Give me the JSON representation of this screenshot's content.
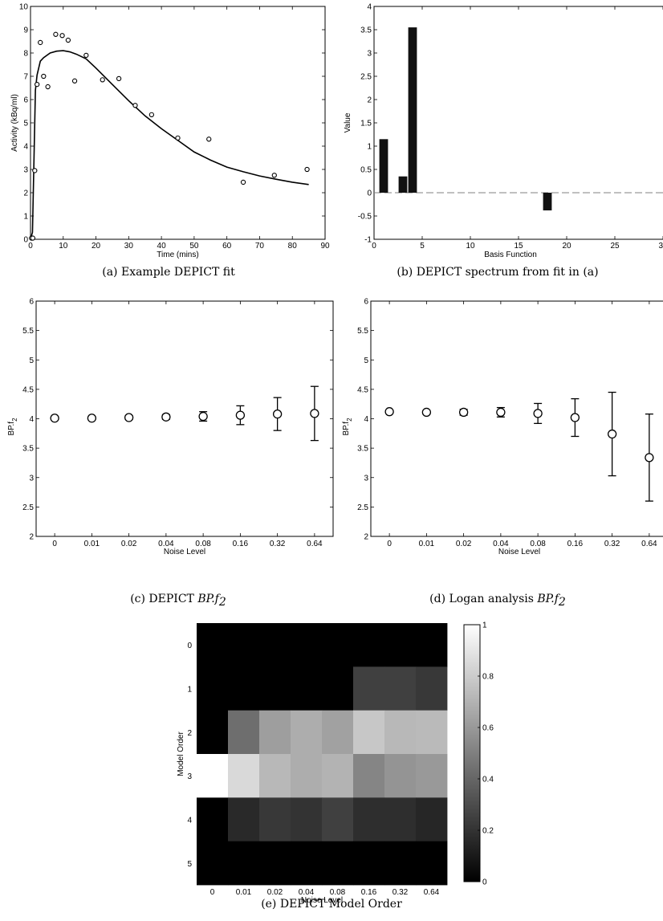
{
  "captions": {
    "a": "(a)  Example DEPICT fit",
    "b": "(b)  DEPICT spectrum from fit in (a)",
    "c_prefix": "(c)  DEPICT ",
    "c_math": "BP.f",
    "c_sub": "2",
    "d_prefix": "(d)  Logan analysis ",
    "d_math": "BP.f",
    "d_sub": "2",
    "e": "(e)  DEPICT Model Order"
  },
  "colors": {
    "ink": "#000000",
    "bar": "#111111",
    "dash": "#808080"
  },
  "chart_data": [
    {
      "id": "a",
      "type": "scatter",
      "xlabel": "Time (mins)",
      "ylabel": "Activity (kBq/ml)",
      "xlim": [
        0,
        90
      ],
      "ylim": [
        0,
        10
      ],
      "xticks": [
        0,
        10,
        20,
        30,
        40,
        50,
        60,
        70,
        80,
        90
      ],
      "yticks": [
        0,
        1,
        2,
        3,
        4,
        5,
        6,
        7,
        8,
        9,
        10
      ],
      "series": [
        {
          "kind": "points",
          "x": [
            0.3,
            0.7,
            1.3,
            2,
            3,
            4,
            5.3,
            7.7,
            9.7,
            11.5,
            13.5,
            17,
            22,
            27,
            32,
            37,
            45,
            54.5,
            65,
            74.5,
            84.5
          ],
          "y": [
            0.05,
            0.05,
            2.95,
            6.65,
            8.45,
            7.0,
            6.55,
            8.8,
            8.75,
            8.55,
            6.8,
            7.9,
            6.85,
            6.9,
            5.75,
            5.35,
            4.35,
            4.3,
            2.45,
            2.75,
            3.0
          ]
        },
        {
          "kind": "line",
          "x": [
            0,
            0.6,
            1.0,
            1.5,
            2.0,
            3.0,
            4.0,
            6.0,
            8.0,
            10.0,
            12.0,
            14.0,
            17.0,
            20.0,
            25.0,
            30.0,
            35.0,
            40.0,
            45.0,
            50.0,
            55.0,
            60.0,
            65.0,
            70.0,
            75.0,
            80.0,
            85.0
          ],
          "y": [
            0,
            0.3,
            3.0,
            6.4,
            7.05,
            7.65,
            7.8,
            8.0,
            8.08,
            8.1,
            8.05,
            7.95,
            7.75,
            7.35,
            6.65,
            5.95,
            5.3,
            4.75,
            4.25,
            3.75,
            3.4,
            3.1,
            2.9,
            2.72,
            2.58,
            2.45,
            2.35
          ]
        }
      ]
    },
    {
      "id": "b",
      "type": "bar",
      "xlabel": "Basis Function",
      "ylabel": "Value",
      "xlim": [
        0,
        30
      ],
      "ylim": [
        -1,
        4
      ],
      "xticks": [
        0,
        5,
        10,
        15,
        20,
        25,
        30
      ],
      "yticks": [
        -1,
        -0.5,
        0,
        0.5,
        1,
        1.5,
        2,
        2.5,
        3,
        3.5,
        4
      ],
      "x": [
        1,
        3,
        4,
        18
      ],
      "values": [
        1.15,
        0.35,
        3.55,
        -0.38
      ],
      "baseline": 0
    },
    {
      "id": "c",
      "type": "scatter",
      "xlabel": "Noise Level",
      "ylabel": "BP.f",
      "ylabel_sub": "2",
      "ylim": [
        2,
        6
      ],
      "yticks": [
        2,
        2.5,
        3,
        3.5,
        4,
        4.5,
        5,
        5.5,
        6
      ],
      "categories": [
        "0",
        "0.01",
        "0.02",
        "0.04",
        "0.08",
        "0.16",
        "0.32",
        "0.64"
      ],
      "values": [
        4.01,
        4.01,
        4.02,
        4.03,
        4.04,
        4.06,
        4.08,
        4.09
      ],
      "err": [
        0.01,
        0.01,
        0.03,
        0.04,
        0.08,
        0.16,
        0.28,
        0.46
      ]
    },
    {
      "id": "d",
      "type": "scatter",
      "xlabel": "Noise Level",
      "ylabel": "BP.f",
      "ylabel_sub": "2",
      "ylim": [
        2,
        6
      ],
      "yticks": [
        2,
        2.5,
        3,
        3.5,
        4,
        4.5,
        5,
        5.5,
        6
      ],
      "categories": [
        "0",
        "0.01",
        "0.02",
        "0.04",
        "0.08",
        "0.16",
        "0.32",
        "0.64"
      ],
      "values": [
        4.12,
        4.11,
        4.11,
        4.11,
        4.09,
        4.02,
        3.74,
        3.34
      ],
      "err": [
        0.01,
        0.03,
        0.05,
        0.08,
        0.17,
        0.32,
        0.71,
        0.74
      ]
    },
    {
      "id": "e",
      "type": "heatmap",
      "xlabel": "Noise Level",
      "ylabel": "Model Order",
      "x": [
        "0",
        "0.01",
        "0.02",
        "0.04",
        "0.08",
        "0.16",
        "0.32",
        "0.64"
      ],
      "y": [
        "0",
        "1",
        "2",
        "3",
        "4",
        "5"
      ],
      "values": [
        [
          0,
          0,
          0,
          0,
          0,
          0,
          0,
          0
        ],
        [
          0,
          0,
          0,
          0,
          0,
          0.25,
          0.25,
          0.22
        ],
        [
          0,
          0.43,
          0.62,
          0.68,
          0.63,
          0.78,
          0.72,
          0.73
        ],
        [
          1,
          0.85,
          0.72,
          0.68,
          0.7,
          0.52,
          0.58,
          0.6
        ],
        [
          0,
          0.16,
          0.22,
          0.2,
          0.25,
          0.18,
          0.18,
          0.15
        ],
        [
          0,
          0,
          0,
          0,
          0,
          0,
          0,
          0
        ]
      ],
      "clim": [
        0,
        1
      ],
      "colorbar_ticks": [
        0,
        0.2,
        0.4,
        0.6,
        0.8,
        1
      ],
      "colormap": "gray"
    }
  ]
}
